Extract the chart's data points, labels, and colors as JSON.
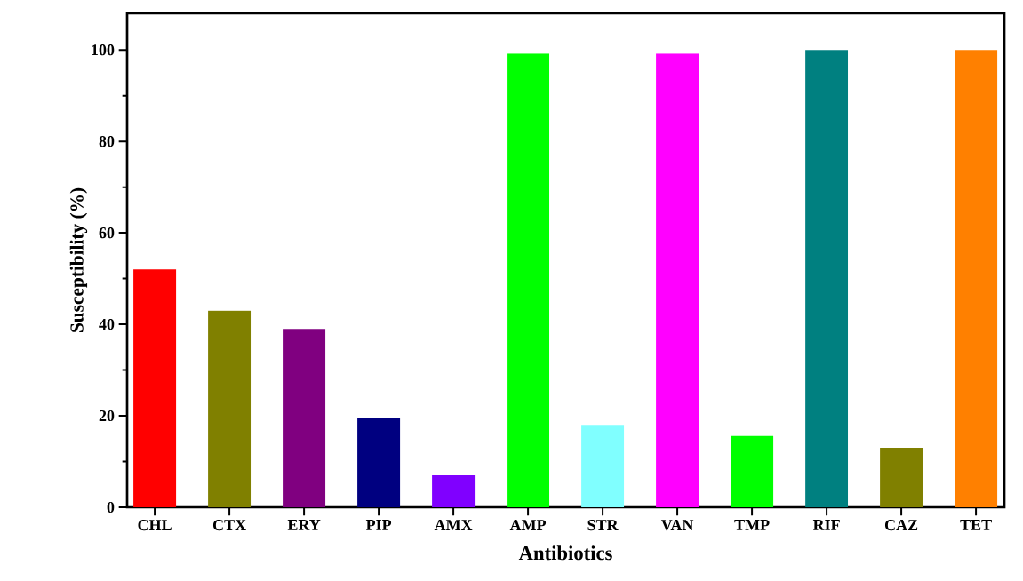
{
  "chart_data": {
    "type": "bar",
    "xlabel": "Antibiotics",
    "ylabel": "Susceptibility (%)",
    "categories": [
      "CHL",
      "CTX",
      "ERY",
      "PIP",
      "AMX",
      "AMP",
      "STR",
      "VAN",
      "TMP",
      "RIF",
      "CAZ",
      "TET"
    ],
    "values": [
      52,
      43,
      39,
      19.5,
      7,
      99.2,
      18,
      99.2,
      15.6,
      100,
      13,
      100
    ],
    "colors": [
      "#ff0000",
      "#808000",
      "#800080",
      "#000080",
      "#8000ff",
      "#00ff00",
      "#80ffff",
      "#ff00ff",
      "#00ff00",
      "#008080",
      "#808000",
      "#ff8000"
    ],
    "ylim": [
      0,
      108
    ],
    "yticks": [
      0,
      20,
      40,
      60,
      80,
      100
    ],
    "grid": false
  }
}
